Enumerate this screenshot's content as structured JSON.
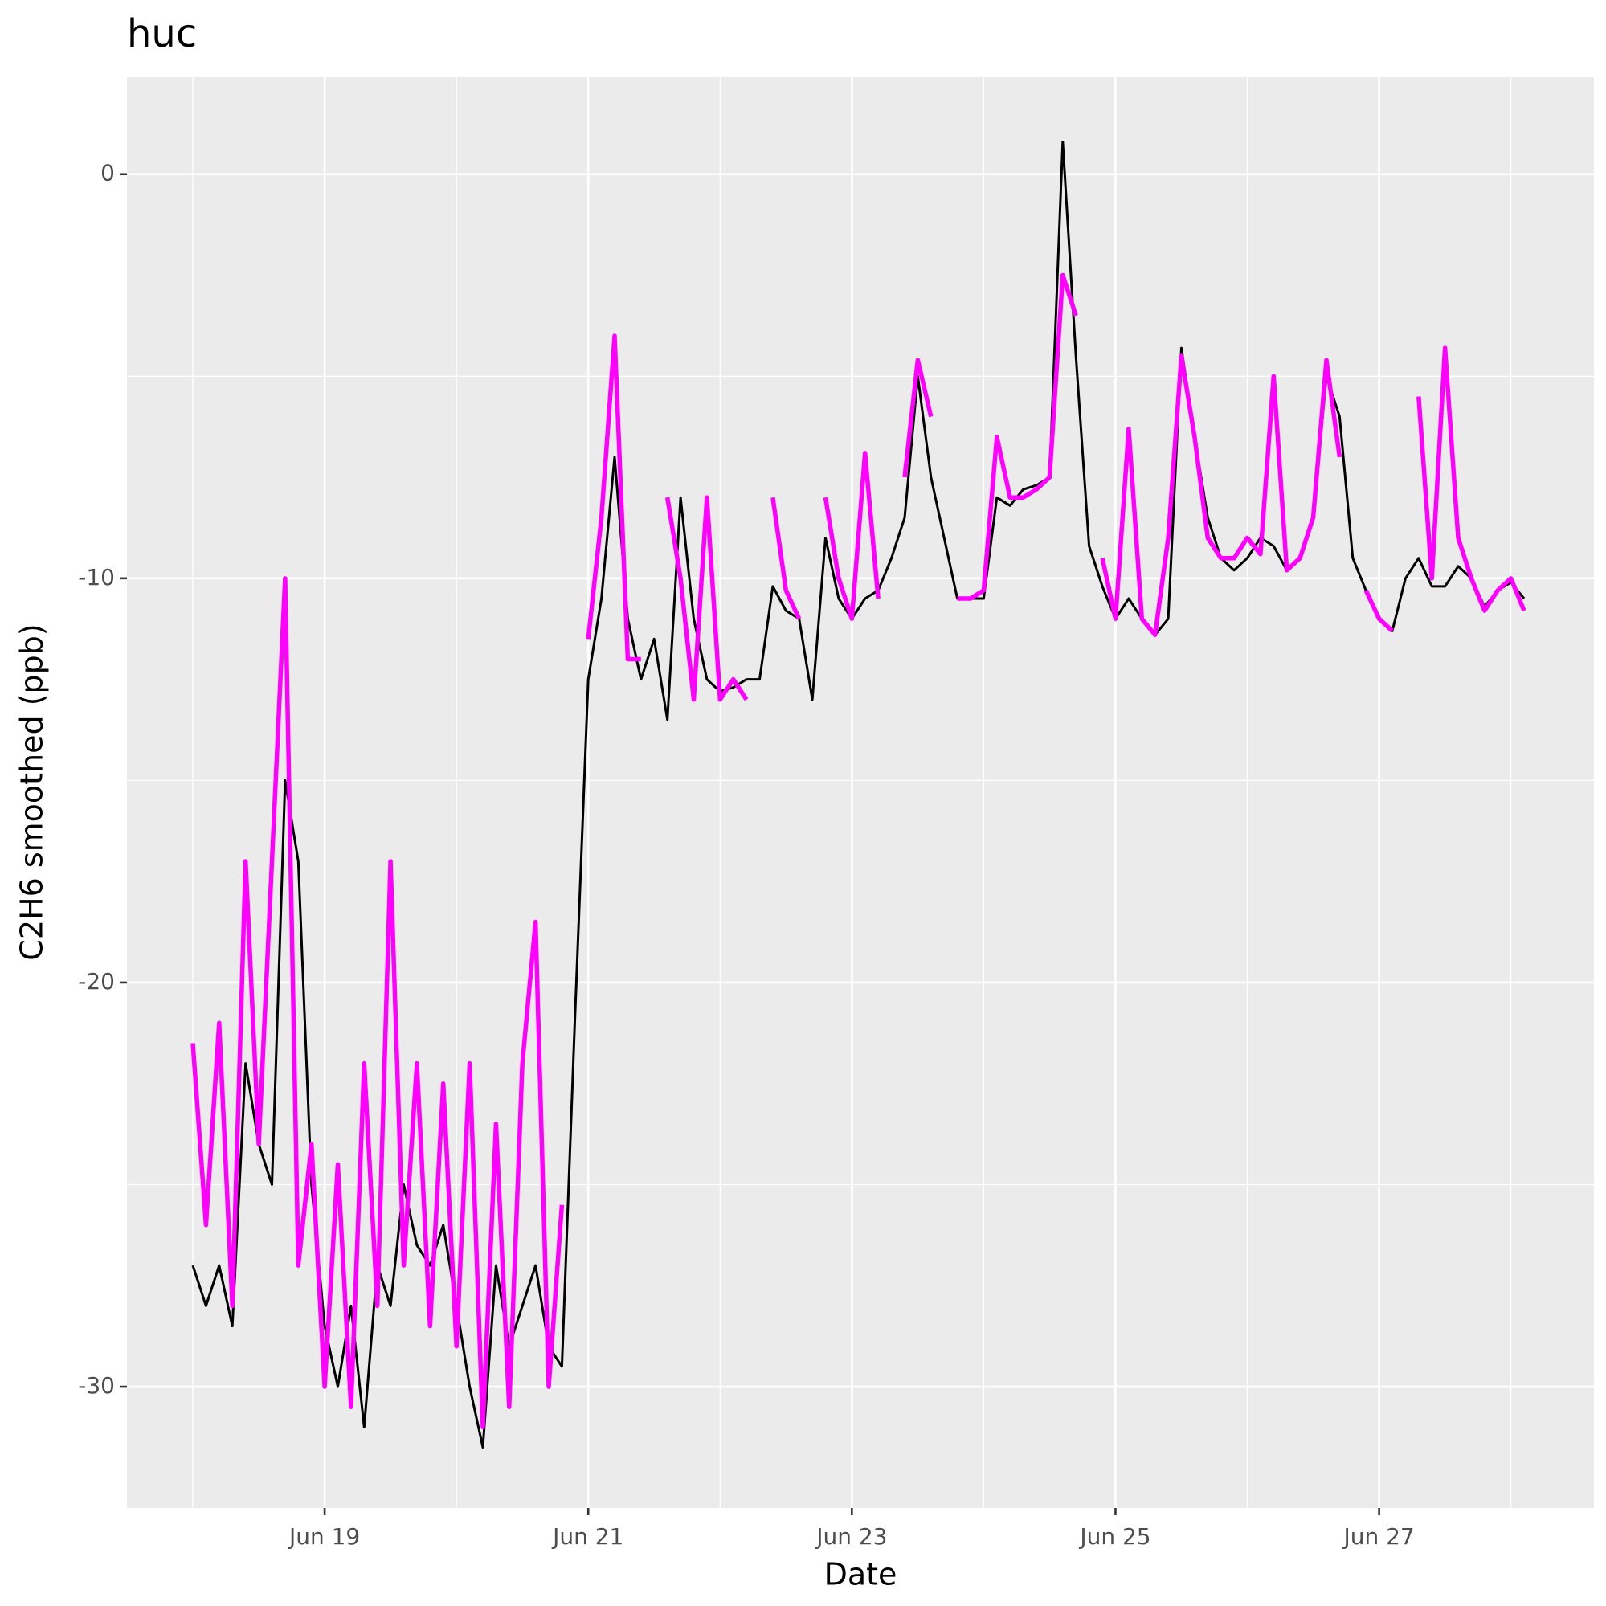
{
  "chart_data": {
    "type": "line",
    "title": "huc",
    "x_label": "Date",
    "y_label": "C2H6 smoothed (ppb)",
    "x": [
      18.0,
      18.1,
      18.2,
      18.3,
      18.4,
      18.5,
      18.6,
      18.7,
      18.8,
      18.9,
      19.0,
      19.1,
      19.2,
      19.3,
      19.4,
      19.5,
      19.6,
      19.7,
      19.8,
      19.9,
      20.0,
      20.1,
      20.2,
      20.3,
      20.4,
      20.5,
      20.6,
      20.7,
      20.8,
      20.9,
      21.0,
      21.1,
      21.2,
      21.3,
      21.4,
      21.5,
      21.6,
      21.7,
      21.8,
      21.9,
      22.0,
      22.1,
      22.2,
      22.3,
      22.4,
      22.5,
      22.6,
      22.7,
      22.8,
      22.9,
      23.0,
      23.1,
      23.2,
      23.3,
      23.4,
      23.5,
      23.6,
      23.7,
      23.8,
      23.9,
      24.0,
      24.1,
      24.2,
      24.3,
      24.4,
      24.5,
      24.6,
      24.7,
      24.8,
      24.9,
      25.0,
      25.1,
      25.2,
      25.3,
      25.4,
      25.5,
      25.6,
      25.7,
      25.8,
      25.9,
      26.0,
      26.1,
      26.2,
      26.3,
      26.4,
      26.5,
      26.6,
      26.7,
      26.8,
      26.9,
      27.0,
      27.1,
      27.2,
      27.3,
      27.4,
      27.5,
      27.6,
      27.7,
      27.8,
      27.9,
      28.0,
      28.1
    ],
    "series": [
      {
        "color": "#000000",
        "values": [
          -27,
          -28,
          -27,
          -28.5,
          -22,
          -24,
          -25,
          -15,
          -17,
          -25,
          -28.5,
          -30,
          -28,
          -31,
          -27,
          -28,
          -25,
          -26.5,
          -27,
          -26,
          -28,
          -30,
          -31.5,
          -27,
          -29,
          -28,
          -27,
          -29,
          -29.5,
          -20.8,
          -12.5,
          -10.5,
          -7,
          -11,
          -12.5,
          -11.5,
          -13.5,
          -8,
          -11,
          -12.5,
          -12.8,
          -12.7,
          -12.5,
          -12.5,
          -10.2,
          -10.8,
          -11,
          -13,
          -9,
          -10.5,
          -11,
          -10.5,
          -10.3,
          -9.5,
          -8.5,
          -5,
          -7.5,
          -9,
          -10.5,
          -10.5,
          -10.5,
          -8,
          -8.2,
          -7.8,
          -7.7,
          -7.5,
          0.8,
          -4.5,
          -9.2,
          -10.2,
          -11,
          -10.5,
          -11,
          -11.4,
          -11,
          -4.3,
          -6.5,
          -8.5,
          -9.5,
          -9.8,
          -9.5,
          -9,
          -9.2,
          -9.8,
          -9.5,
          -8.5,
          -5,
          -6,
          -9.5,
          -10.3,
          -11,
          -11.3,
          -10,
          -9.5,
          -10.2,
          -10.2,
          -9.7,
          -10,
          -10.7,
          -10.3,
          -10.1,
          -10.5
        ]
      },
      {
        "color": "#ff00ff",
        "values": [
          -21.5,
          -26,
          -21,
          -28,
          -17,
          -24,
          -17,
          -10,
          -27,
          -24,
          -30,
          -24.5,
          -30.5,
          -22,
          -28,
          -17,
          -27,
          -22,
          -28.5,
          -22.5,
          -29,
          -22,
          -31,
          -23.5,
          -30.5,
          -22,
          -18.5,
          -30,
          -25.5,
          null,
          -11.5,
          -8.5,
          -4,
          -12,
          -12,
          null,
          -8,
          -10,
          -13,
          -8,
          -13,
          -12.5,
          -13,
          null,
          -8,
          -10.3,
          -11,
          null,
          -8,
          -10,
          -11,
          -6.9,
          -10.5,
          null,
          -7.5,
          -4.6,
          -6,
          null,
          -10.5,
          -10.5,
          -10.3,
          -6.5,
          -8,
          -8,
          -7.8,
          -7.5,
          -2.5,
          -3.5,
          null,
          -9.5,
          -11,
          -6.3,
          -11,
          -11.4,
          -9,
          -4.5,
          -6.5,
          -9,
          -9.5,
          -9.5,
          -9,
          -9.4,
          -5,
          -9.8,
          -9.5,
          -8.5,
          -4.6,
          -7,
          null,
          -10.3,
          -11,
          -11.3,
          null,
          -5.5,
          -10,
          -4.3,
          -9,
          -10,
          -10.8,
          -10.3,
          -10,
          -10.8
        ]
      }
    ],
    "xlim": [
      17.5,
      28.63
    ],
    "ylim": [
      -33.0,
      2.4
    ],
    "xticks": [
      {
        "value": 19,
        "label": "Jun 19"
      },
      {
        "value": 21,
        "label": "Jun 21"
      },
      {
        "value": 23,
        "label": "Jun 23"
      },
      {
        "value": 25,
        "label": "Jun 25"
      },
      {
        "value": 27,
        "label": "Jun 27"
      }
    ],
    "yticks": [
      -30,
      -20,
      -10,
      0
    ],
    "grid": true
  }
}
